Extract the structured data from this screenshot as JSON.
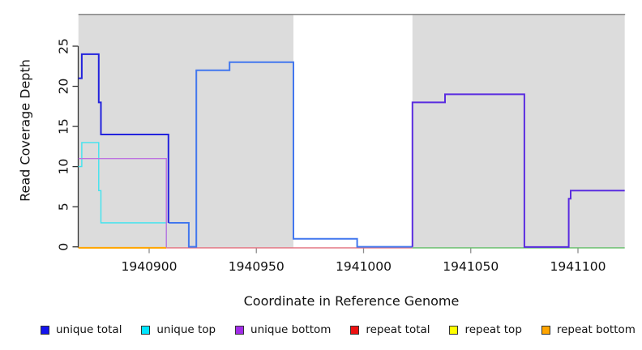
{
  "chart_data": {
    "type": "line",
    "subtype": "step-coverage-plot",
    "title": "",
    "xlabel": "Coordinate in Reference Genome",
    "ylabel": "Read Coverage Depth",
    "xlim": [
      1940867,
      1941122
    ],
    "ylim": [
      0,
      29
    ],
    "grid": false,
    "x_ticks": [
      1940900,
      1940950,
      1941000,
      1941050,
      1941100
    ],
    "y_ticks": [
      0,
      5,
      10,
      15,
      20,
      25
    ],
    "top_border_color": "#8c8c8c",
    "axis_color": "#333333",
    "x_tick_color": "#8c8c8c",
    "shaded_regions": [
      {
        "x0": 1940867,
        "x1": 1940967.3,
        "color": "#dcdcdc"
      },
      {
        "x0": 1941022.8,
        "x1": 1941121.8,
        "color": "#dcdcdc"
      }
    ],
    "series": [
      {
        "id": "repeat-total-baseline",
        "legend": "repeat total",
        "color": "#e4707f",
        "width": 1.4,
        "baseline": "low",
        "points": [
          [
            1940908,
            0
          ],
          [
            1941022.8,
            0
          ]
        ]
      },
      {
        "id": "green-zero-line-right",
        "legend": "",
        "color": "#63bd68",
        "width": 1.4,
        "baseline": "low",
        "points": [
          [
            1941022.8,
            0
          ],
          [
            1941121.8,
            0
          ]
        ]
      },
      {
        "id": "unique-total-right",
        "legend": "unique total",
        "color": "#4277ee",
        "width": 2,
        "baseline": "high",
        "points": [
          [
            1940909,
            3
          ],
          [
            1940918.5,
            3
          ],
          [
            1940918.5,
            0
          ],
          [
            1940922,
            0
          ],
          [
            1940922,
            22
          ],
          [
            1940937.5,
            22
          ],
          [
            1940937.5,
            23
          ],
          [
            1940967.3,
            23
          ],
          [
            1940967.3,
            1
          ],
          [
            1940997,
            1
          ],
          [
            1940997,
            0
          ],
          [
            1941022.8,
            0
          ]
        ]
      },
      {
        "id": "unique-total-left",
        "legend": "unique total",
        "color": "#2323dd",
        "width": 2,
        "baseline": "high",
        "points": [
          [
            1940867,
            21
          ],
          [
            1940868.6,
            21
          ],
          [
            1940868.6,
            24
          ],
          [
            1940876.5,
            24
          ],
          [
            1940876.5,
            18
          ],
          [
            1940877.5,
            18
          ],
          [
            1940877.5,
            14
          ],
          [
            1940909,
            14
          ],
          [
            1940909,
            3
          ]
        ]
      },
      {
        "id": "unique-top",
        "legend": "unique top",
        "color": "#3fe3ef",
        "width": 1.4,
        "baseline": "low",
        "points": [
          [
            1940867,
            10
          ],
          [
            1940868.6,
            10
          ],
          [
            1940868.6,
            13
          ],
          [
            1940876.5,
            13
          ],
          [
            1940876.5,
            7
          ],
          [
            1940877.5,
            7
          ],
          [
            1940877.5,
            3
          ],
          [
            1940908,
            3
          ],
          [
            1940908,
            0
          ]
        ]
      },
      {
        "id": "unique-bottom-left",
        "legend": "unique bottom",
        "color": "#bd72e0",
        "width": 1.4,
        "baseline": "low",
        "points": [
          [
            1940867,
            11
          ],
          [
            1940908,
            11
          ],
          [
            1940908,
            0
          ]
        ]
      },
      {
        "id": "unique-bottom-right",
        "legend": "unique bottom",
        "color": "#5a2ce0",
        "width": 2,
        "baseline": "mid",
        "points": [
          [
            1941022.8,
            0
          ],
          [
            1941022.8,
            18
          ],
          [
            1941038,
            18
          ],
          [
            1941038,
            19
          ],
          [
            1941075,
            19
          ],
          [
            1941075,
            0
          ],
          [
            1941095.7,
            0
          ],
          [
            1941095.7,
            6
          ],
          [
            1941096.6,
            6
          ],
          [
            1941096.6,
            7
          ],
          [
            1941121.8,
            7
          ]
        ]
      },
      {
        "id": "repeat-bottom-baseline",
        "legend": "repeat bottom",
        "color": "#ffa500",
        "width": 2,
        "baseline": "low",
        "points": [
          [
            1940867,
            0
          ],
          [
            1940908,
            0
          ]
        ]
      }
    ]
  },
  "legend": {
    "items": [
      {
        "label": "unique total",
        "color": "#1414ee"
      },
      {
        "label": "unique top",
        "color": "#00e5ff"
      },
      {
        "label": "unique bottom",
        "color": "#a12ce8"
      },
      {
        "label": "repeat total",
        "color": "#ee1111"
      },
      {
        "label": "repeat top",
        "color": "#ffff00"
      },
      {
        "label": "repeat bottom",
        "color": "#ffa500"
      }
    ]
  }
}
